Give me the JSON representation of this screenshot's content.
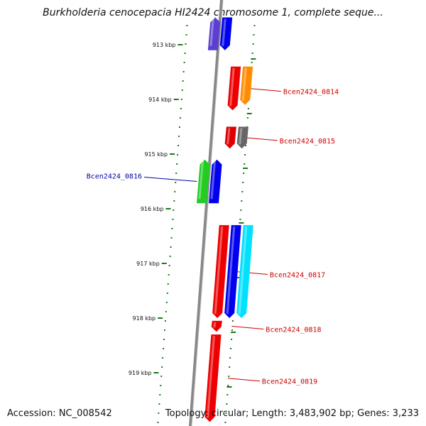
{
  "title": "Burkholderia cenocepacia HI2424 chromosome 1, complete seque...",
  "accession": "Accession: NC_008542",
  "topology": "Topology: circular; Length: 3,483,902 bp; Genes: 3,233",
  "axis": {
    "ticks": [
      "913 kbp",
      "914 kbp",
      "915 kbp",
      "916 kbp",
      "917 kbp",
      "918 kbp",
      "919 kbp"
    ]
  },
  "genes": [
    {
      "id": "g1",
      "label": "",
      "color": "#5a3fd0",
      "start_kbp": 912.5,
      "end_kbp": 913.1,
      "strand": "minus",
      "lane": -1
    },
    {
      "id": "g2",
      "label": "",
      "color": "#0000ee",
      "start_kbp": 912.5,
      "end_kbp": 913.1,
      "strand": "plus",
      "lane": 0
    },
    {
      "id": "g3",
      "label": "Bcen2424_0814",
      "label_color": "#cc0000",
      "color": "#ee0000",
      "start_kbp": 913.4,
      "end_kbp": 914.2,
      "strand": "plus",
      "lane": 1
    },
    {
      "id": "g4",
      "label": "",
      "color": "#ff8c00",
      "start_kbp": 913.4,
      "end_kbp": 914.1,
      "strand": "plus",
      "lane": 2
    },
    {
      "id": "g5",
      "label": "Bcen2424_0815",
      "label_color": "#cc0000",
      "color": "#dd0000",
      "start_kbp": 914.5,
      "end_kbp": 914.9,
      "strand": "plus",
      "lane": 1
    },
    {
      "id": "g6",
      "label": "",
      "color": "#666666",
      "start_kbp": 914.5,
      "end_kbp": 914.9,
      "strand": "plus",
      "lane": 2
    },
    {
      "id": "g7",
      "label": "Bcen2424_0816",
      "label_color": "#0000aa",
      "color": "#22cc22",
      "start_kbp": 915.1,
      "end_kbp": 915.9,
      "strand": "minus",
      "lane": -1
    },
    {
      "id": "g8",
      "label": "",
      "color": "#0000ee",
      "start_kbp": 915.1,
      "end_kbp": 915.9,
      "strand": "minus",
      "lane": 0
    },
    {
      "id": "g9",
      "label": "Bcen2424_0817",
      "label_color": "#cc0000",
      "color": "#ee0000",
      "start_kbp": 916.3,
      "end_kbp": 918.0,
      "strand": "plus",
      "lane": 1
    },
    {
      "id": "g10",
      "label": "",
      "color": "#0000ee",
      "start_kbp": 916.3,
      "end_kbp": 918.0,
      "strand": "plus",
      "lane": 2
    },
    {
      "id": "g11",
      "label": "",
      "color": "#00e0ff",
      "start_kbp": 916.3,
      "end_kbp": 918.0,
      "strand": "plus",
      "lane": 3
    },
    {
      "id": "g12",
      "label": "Bcen2424_0818",
      "label_color": "#cc0000",
      "color": "#ee0000",
      "start_kbp": 918.05,
      "end_kbp": 918.25,
      "strand": "plus",
      "lane": 1
    },
    {
      "id": "g13",
      "label": "Bcen2424_0819",
      "label_color": "#cc0000",
      "color": "#ee0000",
      "start_kbp": 918.3,
      "end_kbp": 919.9,
      "strand": "plus",
      "lane": 1
    }
  ],
  "colors": {
    "backbone": "#888888",
    "tick": "#1a7a1a",
    "dots": "#1a7a1a"
  }
}
